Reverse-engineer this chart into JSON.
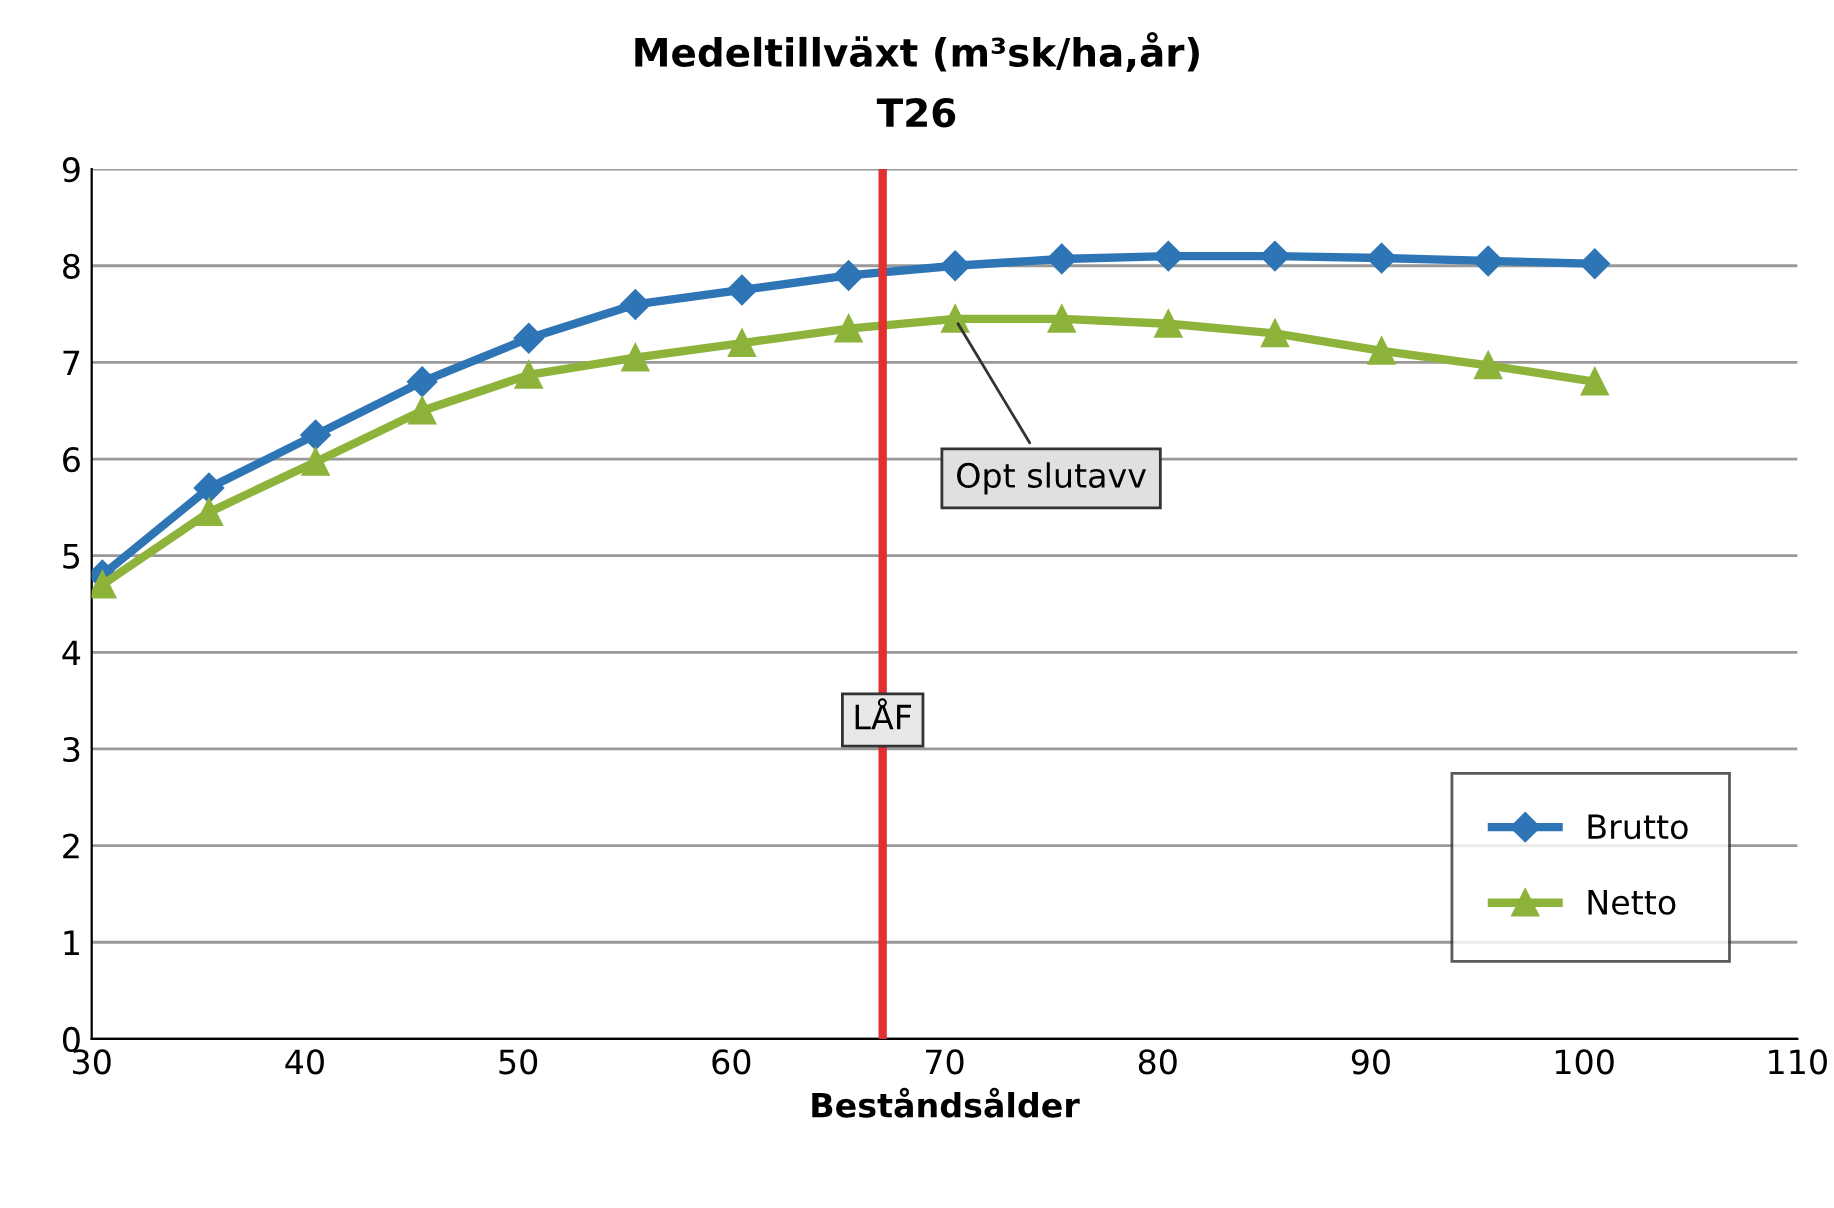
{
  "chart_data": {
    "type": "line",
    "title": "Medeltillväxt (m³sk/ha,år)",
    "subtitle": "T26",
    "xlabel": "Beståndsålder",
    "x": [
      30.5,
      35.5,
      40.5,
      45.5,
      50.5,
      55.5,
      60.5,
      65.5,
      70.5,
      75.5,
      80.5,
      85.5,
      90.5,
      95.5,
      100.5
    ],
    "series": [
      {
        "name": "Brutto",
        "color": "#2e75b6",
        "marker": "diamond",
        "values": [
          4.8,
          5.7,
          6.25,
          6.8,
          7.25,
          7.6,
          7.75,
          7.9,
          8.0,
          8.07,
          8.1,
          8.1,
          8.08,
          8.05,
          8.02
        ]
      },
      {
        "name": "Netto",
        "color": "#8db33a",
        "marker": "triangle",
        "values": [
          4.7,
          5.45,
          5.97,
          6.5,
          6.87,
          7.05,
          7.2,
          7.35,
          7.45,
          7.45,
          7.4,
          7.3,
          7.12,
          6.97,
          6.8
        ]
      }
    ],
    "xlim": [
      30,
      110
    ],
    "xticks": [
      30,
      40,
      50,
      60,
      70,
      80,
      90,
      100,
      110
    ],
    "ylim": [
      0,
      9
    ],
    "yticks": [
      0,
      1,
      2,
      3,
      4,
      5,
      6,
      7,
      8,
      9
    ],
    "grid": "y",
    "legend": "bottom right",
    "ref_lines": [
      {
        "axis": "x",
        "value": 67.1,
        "label": "LÅF",
        "color": "#e03030"
      }
    ],
    "annotations": [
      {
        "text": "Opt slutavv",
        "x": 70.5,
        "y": 7.45
      }
    ]
  }
}
